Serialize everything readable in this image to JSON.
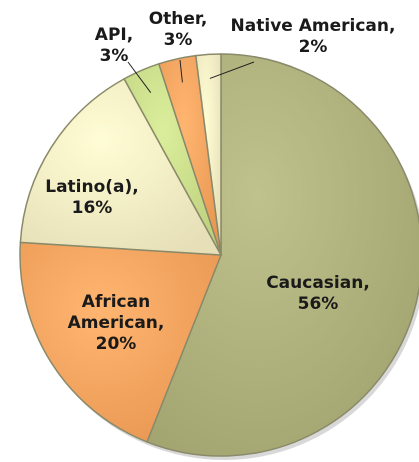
{
  "chart_data": {
    "type": "pie",
    "title": "",
    "slices": [
      {
        "category": "Caucasian",
        "value": 56,
        "label_lines": [
          "Caucasian,",
          "56%"
        ],
        "color": "#aeb07c"
      },
      {
        "category": "African American",
        "value": 20,
        "label_lines": [
          "African",
          "American,",
          "20%"
        ],
        "color": "#f4a35e"
      },
      {
        "category": "Latino(a)",
        "value": 16,
        "label_lines": [
          "Latino(a),",
          "16%"
        ],
        "color": "#f2ebc3"
      },
      {
        "category": "API",
        "value": 3,
        "label_lines": [
          "API,",
          "3%"
        ],
        "color": "#c9dc8a"
      },
      {
        "category": "Other",
        "value": 3,
        "label_lines": [
          "Other,",
          "3%"
        ],
        "color": "#f4a35e"
      },
      {
        "category": "Native American",
        "value": 2,
        "label_lines": [
          "Native American,",
          "2%"
        ],
        "color": "#f2ebc3"
      }
    ],
    "start_angle_deg": 0,
    "direction": "clockwise",
    "legend": "none"
  }
}
